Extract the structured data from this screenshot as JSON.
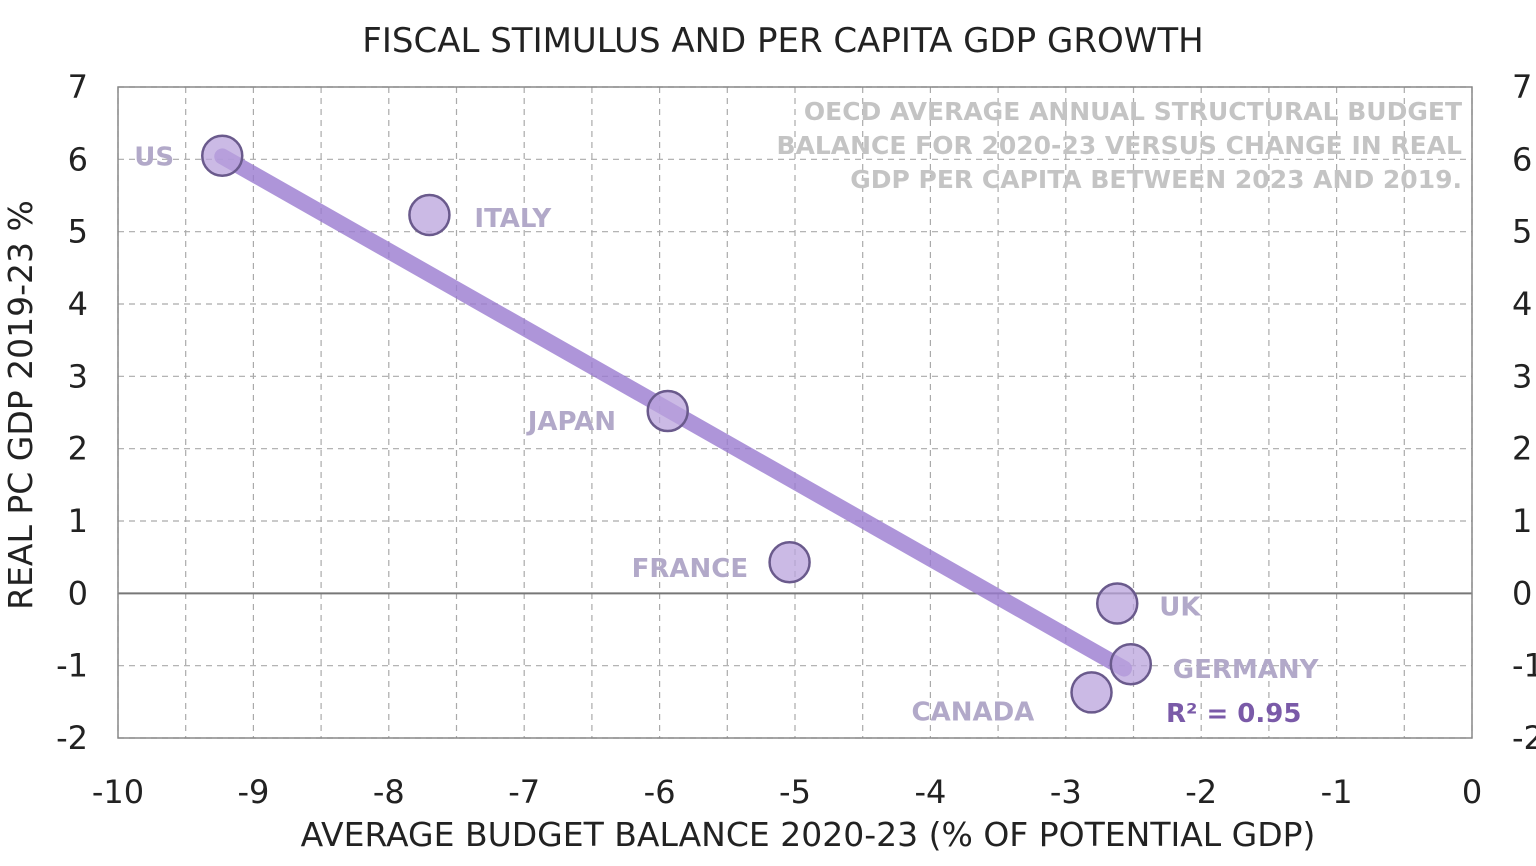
{
  "chart_data": {
    "type": "scatter",
    "title": "FISCAL STIMULUS AND PER CAPITA GDP GROWTH",
    "xlabel": "AVERAGE BUDGET BALANCE 2020-23 (% OF POTENTIAL GDP)",
    "ylabel": "REAL PC GDP 2019-23 %",
    "xlim": [
      -10,
      0
    ],
    "ylim": [
      -2,
      7
    ],
    "xticks": [
      -10,
      -9,
      -8,
      -7,
      -6,
      -5,
      -4,
      -3,
      -2,
      -1,
      0
    ],
    "yticks": [
      -2,
      -1,
      0,
      1,
      2,
      3,
      4,
      5,
      6,
      7
    ],
    "grid": true,
    "annotation": [
      "OECD AVERAGE  ANNUAL STRUCTURAL BUDGET",
      "BALANCE FOR 2020-23 VERSUS CHANGE IN REAL",
      "GDP PER CAPITA  BETWEEN  2023 AND 2019."
    ],
    "r_squared_label": "R² = 0.95",
    "points": [
      {
        "label": "US",
        "x": -9.23,
        "y": 6.05
      },
      {
        "label": "ITALY",
        "x": -7.7,
        "y": 5.23
      },
      {
        "label": "JAPAN",
        "x": -5.94,
        "y": 2.52
      },
      {
        "label": "FRANCE",
        "x": -5.04,
        "y": 0.43
      },
      {
        "label": "UK",
        "x": -2.62,
        "y": -0.14
      },
      {
        "label": "GERMANY",
        "x": -2.52,
        "y": -0.98
      },
      {
        "label": "CANADA",
        "x": -2.81,
        "y": -1.37
      }
    ],
    "trendline": {
      "x": [
        -9.23,
        -2.57
      ],
      "y": [
        6.04,
        -1.04
      ]
    },
    "colors": {
      "marker": "#b9a3dc",
      "marker_edge": "#6a5a8c",
      "trend": "#9a7bd0",
      "label": "#b2a9c9",
      "annotation": "#c4c4c4",
      "r2": "#7a5aa8"
    }
  }
}
